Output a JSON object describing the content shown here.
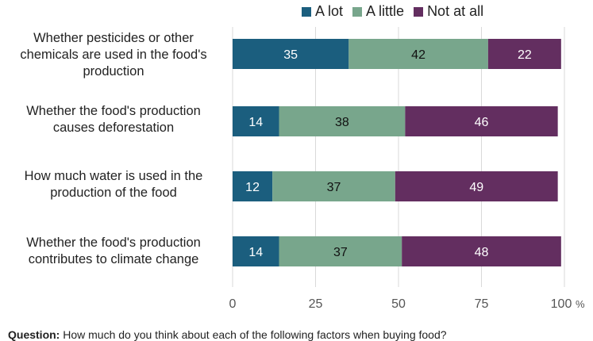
{
  "chart_data": {
    "type": "bar",
    "orientation": "horizontal",
    "stacked": true,
    "categories": [
      "Whether pesticides or other chemicals are used in the food's production",
      "Whether the food's production causes deforestation",
      "How much water is used in the production of the food",
      "Whether the food's production contributes to climate change"
    ],
    "series": [
      {
        "name": "A lot",
        "color": "#1b5e7e",
        "label_color": "#ffffff",
        "values": [
          35,
          14,
          12,
          14
        ]
      },
      {
        "name": "A little",
        "color": "#78a68c",
        "label_color": "#111111",
        "values": [
          42,
          38,
          37,
          37
        ]
      },
      {
        "name": "Not at all",
        "color": "#632e60",
        "label_color": "#ffffff",
        "values": [
          22,
          46,
          49,
          48
        ]
      }
    ],
    "xlim": [
      0,
      100
    ],
    "xticks": [
      "0",
      "25",
      "50",
      "75",
      "100"
    ],
    "x_unit": "%",
    "grid": true,
    "legend_position": "top"
  },
  "footer": {
    "question_label": "Question:",
    "question_text": "How much do you think about each of the following factors when buying food?"
  }
}
